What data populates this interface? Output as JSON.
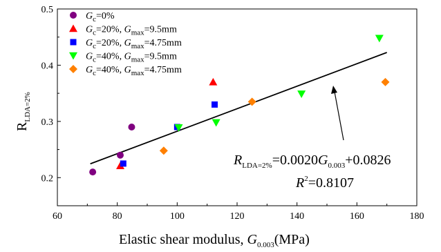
{
  "chart_data": {
    "type": "scatter",
    "title": "",
    "xlabel": {
      "main": "Elastic shear modulus, ",
      "var": "G",
      "sub": "0.003",
      "unit": "(MPa)"
    },
    "ylabel": {
      "main": "R",
      "sub": "LDA=2%"
    },
    "xlim": [
      60,
      180
    ],
    "ylim": [
      0.15,
      0.5
    ],
    "xticks": [
      "60",
      "80",
      "100",
      "120",
      "140",
      "160",
      "180"
    ],
    "yticks": [
      "0.2",
      "0.3",
      "0.4",
      "0.5"
    ],
    "grid": false,
    "legend_position": "top-left",
    "series": [
      {
        "legend": {
          "g": "G",
          "gsub": "c",
          "gval": "=0%",
          "m": "",
          "msub": "",
          "mval": ""
        },
        "marker": "circle",
        "color": "#800080",
        "points": [
          [
            71.8,
            0.21
          ],
          [
            81.0,
            0.24
          ],
          [
            84.8,
            0.29
          ]
        ]
      },
      {
        "legend": {
          "g": "G",
          "gsub": "c",
          "gval": "=20%, ",
          "m": "G",
          "msub": "max",
          "mval": "=9.5mm"
        },
        "marker": "triangle-up",
        "color": "#ff0000",
        "points": [
          [
            81.0,
            0.221
          ],
          [
            112.0,
            0.37
          ]
        ]
      },
      {
        "legend": {
          "g": "G",
          "gsub": "c",
          "gval": "=20%, ",
          "m": "G",
          "msub": "max",
          "mval": "=4.75mm"
        },
        "marker": "square",
        "color": "#0000ff",
        "points": [
          [
            82.0,
            0.225
          ],
          [
            100.0,
            0.29
          ],
          [
            112.5,
            0.33
          ]
        ]
      },
      {
        "legend": {
          "g": "G",
          "gsub": "c",
          "gval": "=40%, ",
          "m": "G",
          "msub": "max",
          "mval": "=9.5mm"
        },
        "marker": "triangle-down",
        "color": "#00ff00",
        "points": [
          [
            100.5,
            0.289
          ],
          [
            113.0,
            0.298
          ],
          [
            141.5,
            0.349
          ],
          [
            167.5,
            0.448
          ]
        ]
      },
      {
        "legend": {
          "g": "G",
          "gsub": "c",
          "gval": "=40%, ",
          "m": "G",
          "msub": "max",
          "mval": "=4.75mm"
        },
        "marker": "diamond",
        "color": "#ff8000",
        "points": [
          [
            95.5,
            0.248
          ],
          [
            125.0,
            0.335
          ],
          [
            169.5,
            0.37
          ]
        ]
      }
    ],
    "fit": {
      "slope": 0.002,
      "intercept": 0.0826,
      "x_range": [
        71,
        170
      ],
      "eq": {
        "r": "R",
        "rsub": "LDA=2%",
        "rest": "=0.0020",
        "g": "G",
        "gsub": "0.003",
        "tail": "+0.0826"
      },
      "r2": {
        "r": "R",
        "sup": "2",
        "val": "=0.8107"
      }
    }
  }
}
